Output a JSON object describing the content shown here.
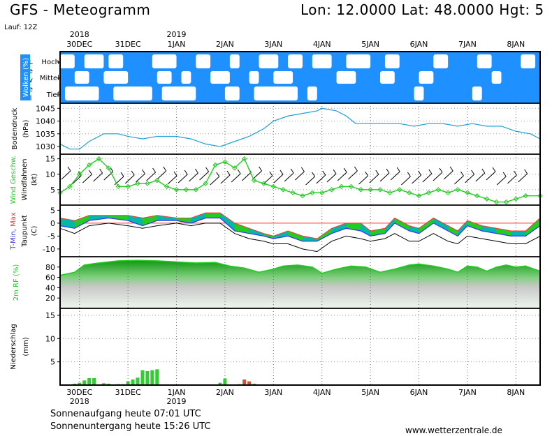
{
  "header": {
    "title": "GFS - Meteogramm",
    "location": "Lon: 12.0000  Lat: 48.0000  Hgt: 5",
    "run": "Lauf: 12Z"
  },
  "footer": {
    "sunrise": "Sonnenaufgang heute 07:01 UTC",
    "sunset": "Sonnenuntergang heute 15:26 UTC",
    "website": "www.wetterzentrale.de"
  },
  "colors": {
    "cloud_sky": "#1e90ff",
    "pressure_line": "#1e9fd6",
    "wind_speed": "#22cc22",
    "temp_band": "#22cc22",
    "temp_band_alt": "#00b8a8",
    "tmin": "#3333ff",
    "tmax": "#ff3333",
    "dewpoint": "#000000",
    "rh_fill": "#22cc22",
    "precip_bar": "#33cc33",
    "precip_conv": "#cc5533"
  },
  "chart_data": [
    {
      "type": "heatmap",
      "title": "Wolken (%)",
      "ylabel": "Level",
      "levels": [
        "Hoch",
        "Mittel",
        "Tief"
      ],
      "x_unit": "day",
      "date_ticks": [
        {
          "day": 0,
          "label": "30DEC",
          "year": "2018"
        },
        {
          "day": 1,
          "label": "31DEC",
          "year": ""
        },
        {
          "day": 2,
          "label": "1JAN",
          "year": "2019"
        },
        {
          "day": 3,
          "label": "2JAN",
          "year": ""
        },
        {
          "day": 4,
          "label": "3JAN",
          "year": ""
        },
        {
          "day": 5,
          "label": "4JAN",
          "year": ""
        },
        {
          "day": 6,
          "label": "5JAN",
          "year": ""
        },
        {
          "day": 7,
          "label": "6JAN",
          "year": ""
        },
        {
          "day": 8,
          "label": "7JAN",
          "year": ""
        },
        {
          "day": 9,
          "label": "8JAN",
          "year": ""
        }
      ],
      "xlim": [
        -0.4,
        9.5
      ],
      "cloudy_periods": {
        "Hoch": [
          [
            -0.4,
            -0.1
          ],
          [
            0.1,
            0.5
          ],
          [
            0.6,
            0.9
          ],
          [
            1.5,
            2.0
          ],
          [
            2.4,
            2.7
          ],
          [
            3.1,
            3.3
          ],
          [
            3.7,
            4.1
          ],
          [
            4.3,
            4.6
          ],
          [
            4.8,
            5.2
          ],
          [
            5.5,
            6.0
          ],
          [
            6.3,
            6.6
          ],
          [
            7.3,
            7.6
          ],
          [
            8.2,
            8.5
          ],
          [
            9.1,
            9.4
          ]
        ],
        "Mittel": [
          [
            -0.1,
            0.2
          ],
          [
            0.5,
            1.0
          ],
          [
            1.6,
            1.9
          ],
          [
            2.1,
            2.3
          ],
          [
            2.7,
            3.1
          ],
          [
            3.5,
            3.7
          ],
          [
            4.0,
            4.4
          ],
          [
            5.3,
            5.7
          ],
          [
            6.2,
            6.5
          ],
          [
            7.0,
            7.3
          ],
          [
            8.5,
            8.7
          ]
        ],
        "Tief": [
          [
            -0.3,
            0.4
          ],
          [
            0.7,
            1.5
          ],
          [
            1.7,
            2.4
          ],
          [
            3.0,
            3.3
          ],
          [
            3.6,
            4.5
          ],
          [
            4.7,
            4.9
          ],
          [
            6.9,
            7.1
          ],
          [
            8.1,
            8.3
          ]
        ]
      }
    },
    {
      "type": "line",
      "title": "Bodendruck",
      "ylabel": "(hPa)",
      "ylim": [
        1027,
        1047
      ],
      "yticks": [
        1030,
        1035,
        1040,
        1045
      ],
      "x": [
        -0.4,
        -0.2,
        0,
        0.2,
        0.5,
        0.8,
        1.0,
        1.3,
        1.6,
        2.0,
        2.3,
        2.6,
        2.9,
        3.2,
        3.5,
        3.8,
        4.0,
        4.3,
        4.6,
        4.9,
        5.0,
        5.3,
        5.5,
        5.7,
        6.0,
        6.3,
        6.6,
        6.9,
        7.2,
        7.5,
        7.8,
        8.1,
        8.4,
        8.7,
        9.0,
        9.3,
        9.5
      ],
      "y": [
        1031,
        1029,
        1029,
        1032,
        1035,
        1035,
        1034,
        1033,
        1034,
        1034,
        1033,
        1031,
        1030,
        1032,
        1034,
        1037,
        1040,
        1042,
        1043,
        1044,
        1045,
        1044,
        1042,
        1039,
        1039,
        1039,
        1039,
        1038,
        1039,
        1039,
        1038,
        1039,
        1038,
        1038,
        1036,
        1035,
        1033
      ]
    },
    {
      "type": "line",
      "title": "Wind Geschw.",
      "ylabel": "(kt)",
      "title2": "Windfahnen",
      "ylim": [
        0,
        16.5
      ],
      "yticks": [
        5,
        10,
        15
      ],
      "x": [
        -0.4,
        -0.2,
        0,
        0.2,
        0.4,
        0.6,
        0.8,
        1.0,
        1.2,
        1.4,
        1.6,
        1.8,
        2.0,
        2.2,
        2.4,
        2.6,
        2.8,
        3.0,
        3.2,
        3.4,
        3.6,
        3.8,
        4.0,
        4.2,
        4.4,
        4.6,
        4.8,
        5.0,
        5.2,
        5.4,
        5.6,
        5.8,
        6.0,
        6.2,
        6.4,
        6.6,
        6.8,
        7.0,
        7.2,
        7.4,
        7.6,
        7.8,
        8.0,
        8.2,
        8.4,
        8.6,
        8.8,
        9.0,
        9.2,
        9.5
      ],
      "y": [
        4,
        6,
        10,
        13,
        15,
        12,
        6,
        6,
        7,
        7,
        8,
        6,
        5,
        5,
        5,
        7,
        13,
        14,
        12,
        15,
        8,
        7,
        6,
        5,
        4,
        3,
        4,
        4,
        5,
        6,
        6,
        5,
        5,
        5,
        4,
        5,
        4,
        3,
        4,
        5,
        4,
        5,
        4,
        3,
        2,
        1,
        1,
        2,
        3,
        3
      ]
    },
    {
      "type": "area",
      "title": "T-Min, Max",
      "ylabel": "(C)",
      "title2": "Taupunkt",
      "ylim": [
        -13,
        7
      ],
      "yticks": [
        -10,
        -5,
        0,
        5
      ],
      "x": [
        -0.4,
        -0.1,
        0.2,
        0.6,
        1.0,
        1.3,
        1.6,
        2.0,
        2.3,
        2.6,
        2.9,
        3.2,
        3.5,
        3.8,
        4.0,
        4.3,
        4.6,
        4.9,
        5.2,
        5.5,
        5.8,
        6.0,
        6.3,
        6.5,
        6.8,
        7.0,
        7.3,
        7.6,
        7.8,
        8.0,
        8.3,
        8.6,
        8.9,
        9.2,
        9.5
      ],
      "series": [
        {
          "name": "T-Max",
          "values": [
            2,
            1,
            3,
            3,
            3,
            2,
            3,
            2,
            2,
            4,
            4,
            0,
            -2,
            -4,
            -5,
            -3,
            -5,
            -6,
            -2,
            0,
            0,
            -3,
            -2,
            2,
            -1,
            -2,
            2,
            -1,
            -3,
            1,
            -1,
            -2,
            -3,
            -3,
            2
          ]
        },
        {
          "name": "T-Min",
          "values": [
            -1,
            -2,
            1,
            2,
            1,
            -1,
            1,
            1,
            0,
            2,
            2,
            -3,
            -4,
            -5,
            -6,
            -5,
            -7,
            -7,
            -4,
            -2,
            -3,
            -5,
            -4,
            0,
            -3,
            -4,
            0,
            -3,
            -5,
            -1,
            -3,
            -4,
            -5,
            -5,
            -1
          ]
        },
        {
          "name": "Taupunkt",
          "values": [
            -2,
            -4,
            -1,
            0,
            -1,
            -2,
            -1,
            0,
            -1,
            0,
            0,
            -4,
            -6,
            -7,
            -8,
            -8,
            -10,
            -11,
            -7,
            -5,
            -6,
            -7,
            -6,
            -4,
            -7,
            -7,
            -4,
            -7,
            -8,
            -5,
            -6,
            -7,
            -8,
            -8,
            -5
          ]
        }
      ]
    },
    {
      "type": "area",
      "title": "2m RF (%)",
      "ylim": [
        0,
        100
      ],
      "yticks": [
        20,
        40,
        60,
        80
      ],
      "x": [
        -0.4,
        -0.1,
        0.1,
        0.4,
        0.8,
        1.2,
        1.6,
        2.0,
        2.4,
        2.8,
        3.1,
        3.4,
        3.7,
        4.0,
        4.2,
        4.5,
        4.8,
        5.0,
        5.3,
        5.6,
        5.9,
        6.2,
        6.5,
        6.8,
        7.0,
        7.3,
        7.6,
        7.8,
        8.0,
        8.2,
        8.4,
        8.6,
        8.8,
        9.0,
        9.2,
        9.5
      ],
      "y": [
        64,
        70,
        84,
        88,
        92,
        93,
        92,
        90,
        88,
        89,
        82,
        78,
        70,
        76,
        82,
        84,
        80,
        68,
        76,
        82,
        80,
        70,
        76,
        84,
        86,
        82,
        76,
        70,
        82,
        80,
        72,
        80,
        84,
        80,
        82,
        72
      ]
    },
    {
      "type": "bar",
      "title": "Niederschlag",
      "ylabel": "(mm)",
      "ylim": [
        0,
        16.5
      ],
      "yticks": [
        5,
        10,
        15
      ],
      "x": [
        -0.1,
        0.0,
        0.1,
        0.2,
        0.3,
        0.5,
        0.6,
        0.8,
        0.9,
        1.0,
        1.1,
        1.2,
        1.3,
        1.4,
        1.5,
        1.6,
        2.5,
        2.9,
        3.0,
        3.3,
        3.4,
        3.5,
        3.6,
        8.5
      ],
      "values": [
        0.3,
        0.5,
        1.0,
        1.5,
        1.5,
        0.4,
        0.3,
        0.2,
        0.2,
        0.8,
        1.2,
        1.6,
        3.2,
        3.0,
        3.2,
        3.4,
        0.1,
        0.5,
        1.4,
        0.2,
        1.2,
        0.8,
        0.3,
        0.1
      ],
      "convective": [
        false,
        false,
        false,
        false,
        false,
        false,
        false,
        false,
        false,
        false,
        false,
        false,
        false,
        false,
        false,
        false,
        false,
        false,
        false,
        false,
        true,
        true,
        false,
        false
      ]
    }
  ]
}
